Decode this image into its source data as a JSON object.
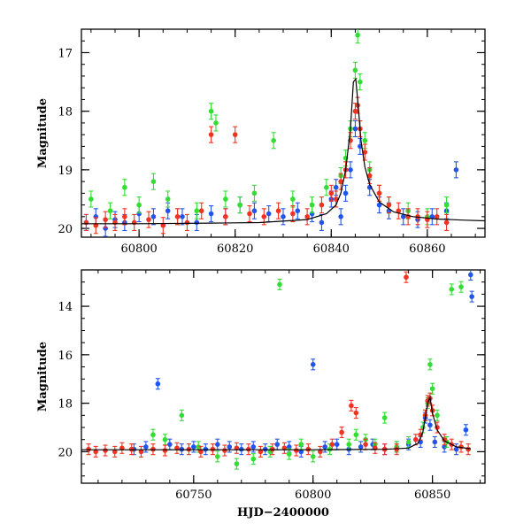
{
  "chart_data": [
    {
      "type": "scatter",
      "panel": "top",
      "title": "",
      "xlabel": "",
      "ylabel": "Magnitude",
      "xlim": [
        60788,
        60872
      ],
      "ylim": [
        20.15,
        16.6
      ],
      "y_inverted": true,
      "xticks": [
        60800,
        60820,
        60840,
        60860
      ],
      "yticks": [
        17,
        18,
        19,
        20
      ],
      "x_tick_labels": [
        "60800",
        "60820",
        "60840",
        "60860"
      ],
      "y_tick_labels": [
        "17",
        "18",
        "19",
        "20"
      ],
      "grid": false,
      "legend": "none",
      "series": [
        {
          "color": "#2255ee",
          "x": [
            60789,
            60791,
            60793,
            60795,
            60797,
            60800,
            60803,
            60806,
            60809,
            60812,
            60815,
            60818,
            60821,
            60824,
            60827,
            60830,
            60833,
            60836,
            60838,
            60840,
            60841,
            60842,
            60843,
            60844,
            60845,
            60846,
            60848,
            60850,
            60852,
            60855,
            60858,
            60861,
            60864,
            60866
          ],
          "y": [
            19.9,
            19.8,
            20.0,
            19.85,
            19.9,
            19.75,
            19.8,
            19.7,
            19.8,
            19.9,
            19.75,
            19.8,
            19.6,
            19.7,
            19.75,
            19.8,
            19.7,
            19.75,
            19.9,
            19.5,
            19.3,
            19.8,
            19.4,
            19.0,
            18.3,
            18.6,
            19.3,
            19.6,
            19.7,
            19.8,
            19.85,
            19.8,
            19.7,
            19.0
          ]
        },
        {
          "color": "#33dd33",
          "x": [
            60790,
            60794,
            60797,
            60800,
            60803,
            60806,
            60808,
            60812,
            60815,
            60816,
            60818,
            60821,
            60824,
            60828,
            60832,
            60836,
            60839,
            60842,
            60843,
            60844,
            60845,
            60845.5,
            60846,
            60847,
            60848,
            60850,
            60852,
            60856,
            60860,
            60864
          ],
          "y": [
            19.5,
            19.7,
            19.3,
            19.6,
            19.2,
            19.5,
            19.8,
            19.7,
            18.0,
            18.2,
            19.5,
            19.6,
            19.4,
            18.5,
            19.5,
            19.6,
            19.3,
            19.1,
            18.8,
            18.3,
            17.3,
            16.7,
            17.5,
            18.5,
            19.0,
            19.4,
            19.6,
            19.7,
            19.8,
            19.6
          ]
        },
        {
          "color": "#ee3322",
          "x": [
            60789,
            60791,
            60793,
            60795,
            60797,
            60799,
            60802,
            60805,
            60808,
            60810,
            60813,
            60815,
            60818,
            60820,
            60823,
            60826,
            60829,
            60832,
            60835,
            60838,
            60840,
            60841,
            60842,
            60843,
            60844,
            60845,
            60845.5,
            60846,
            60847,
            60848,
            60850,
            60852,
            60854,
            60856,
            60858,
            60860,
            60862,
            60864
          ],
          "y": [
            19.9,
            19.95,
            19.85,
            19.9,
            19.8,
            19.9,
            19.85,
            19.95,
            19.8,
            19.9,
            19.7,
            18.4,
            19.8,
            18.4,
            19.75,
            19.8,
            19.7,
            19.75,
            19.8,
            19.6,
            19.4,
            19.5,
            19.2,
            19.0,
            18.5,
            18.0,
            17.9,
            18.3,
            18.7,
            19.1,
            19.4,
            19.6,
            19.7,
            19.8,
            19.8,
            19.85,
            19.8,
            19.9
          ]
        }
      ],
      "model_curve": {
        "color": "#000000",
        "x": [
          60788,
          60800,
          60815,
          60825,
          60835,
          60839,
          60841,
          60842,
          60843,
          60844,
          60844.6,
          60845.1,
          60845.6,
          60846.2,
          60847,
          60848,
          60850,
          60853,
          60857,
          60862,
          60868,
          60872
        ],
        "y": [
          19.92,
          19.92,
          19.91,
          19.9,
          19.85,
          19.75,
          19.6,
          19.4,
          19.0,
          18.3,
          17.5,
          17.45,
          17.9,
          18.5,
          18.95,
          19.25,
          19.55,
          19.72,
          19.8,
          19.84,
          19.86,
          19.87
        ]
      }
    },
    {
      "type": "scatter",
      "panel": "bottom",
      "title": "",
      "xlabel": "HJD−2400000",
      "ylabel": "Magnitude",
      "xlim": [
        60703,
        60872
      ],
      "ylim": [
        21.3,
        12.5
      ],
      "y_inverted": true,
      "xticks": [
        60750,
        60800,
        60850
      ],
      "yticks": [
        14,
        16,
        18,
        20
      ],
      "x_tick_labels": [
        "60750",
        "60800",
        "60850"
      ],
      "y_tick_labels": [
        "14",
        "16",
        "18",
        "20"
      ],
      "grid": false,
      "legend": "none",
      "series": [
        {
          "color": "#2255ee",
          "x": [
            60725,
            60730,
            60735,
            60740,
            60745,
            60750,
            60755,
            60760,
            60765,
            60770,
            60775,
            60780,
            60785,
            60790,
            60795,
            60800,
            60805,
            60810,
            60815,
            60820,
            60825,
            60830,
            60835,
            60840,
            60845,
            60847,
            60849,
            60851,
            60855,
            60860,
            60864,
            60866,
            60866.5
          ],
          "y": [
            19.9,
            19.8,
            17.2,
            19.7,
            19.9,
            19.8,
            19.9,
            19.7,
            19.8,
            19.9,
            19.8,
            19.9,
            19.7,
            19.8,
            20.0,
            16.4,
            19.8,
            19.7,
            19.9,
            19.8,
            19.7,
            19.9,
            19.8,
            19.7,
            19.6,
            18.6,
            18.9,
            19.6,
            19.8,
            19.9,
            19.1,
            12.7,
            13.6
          ]
        },
        {
          "color": "#33dd33",
          "x": [
            60733,
            60738,
            60745,
            60752,
            60760,
            60768,
            60775,
            60782,
            60786,
            60790,
            60795,
            60800,
            60807,
            60815,
            60818,
            60822,
            60826,
            60830,
            60835,
            60840,
            60846,
            60848,
            60849,
            60850,
            60852,
            60856,
            60858,
            60862
          ],
          "y": [
            19.3,
            19.5,
            18.5,
            19.8,
            20.2,
            20.5,
            20.3,
            20.0,
            13.1,
            20.1,
            19.7,
            20.2,
            19.9,
            19.7,
            19.3,
            19.5,
            19.7,
            18.6,
            19.8,
            19.6,
            19.0,
            18.0,
            16.4,
            17.4,
            18.5,
            19.6,
            13.3,
            13.2
          ]
        },
        {
          "color": "#ee3322",
          "x": [
            60706,
            60709,
            60713,
            60717,
            60720,
            60724,
            60728,
            60733,
            60738,
            60743,
            60748,
            60753,
            60758,
            60763,
            60768,
            60773,
            60778,
            60783,
            60788,
            60793,
            60798,
            60803,
            60808,
            60812,
            60816,
            60818,
            60822,
            60826,
            60830,
            60835,
            60839,
            60843,
            60845,
            60847,
            60848,
            60849,
            60850,
            60852,
            60855,
            60858,
            60862,
            60865
          ],
          "y": [
            19.9,
            20.0,
            19.95,
            20.0,
            19.85,
            19.9,
            20.0,
            19.9,
            19.95,
            19.85,
            19.9,
            20.0,
            19.9,
            19.95,
            19.85,
            19.9,
            20.0,
            19.9,
            19.85,
            19.95,
            19.9,
            20.0,
            19.7,
            19.2,
            18.1,
            18.4,
            19.7,
            19.85,
            19.9,
            19.9,
            12.8,
            19.5,
            19.3,
            18.5,
            17.9,
            17.8,
            18.3,
            19.0,
            19.5,
            19.7,
            19.8,
            19.9
          ]
        }
      ],
      "model_curve": {
        "color": "#000000",
        "x": [
          60703,
          60750,
          60800,
          60830,
          60840,
          60844,
          60846,
          60847,
          60848,
          60849,
          60850,
          60852,
          60855,
          60860,
          60866
        ],
        "y": [
          19.92,
          19.92,
          19.92,
          19.9,
          19.85,
          19.65,
          19.2,
          18.6,
          18.0,
          17.75,
          18.4,
          19.1,
          19.55,
          19.8,
          19.88
        ]
      }
    }
  ]
}
